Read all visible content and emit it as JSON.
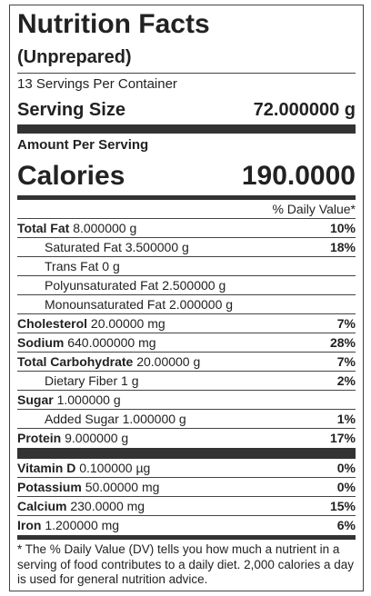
{
  "title": "Nutrition Facts",
  "subtitle": "(Unprepared)",
  "servings": "13 Servings Per Container",
  "serving_size": {
    "label": "Serving Size",
    "value": "72.000000 g"
  },
  "amount_per_serving": "Amount Per Serving",
  "calories": {
    "label": "Calories",
    "value": "190.0000"
  },
  "daily_value_header": "% Daily Value*",
  "nutrients": [
    {
      "name": "Total Fat",
      "amount": "8.000000 g",
      "dv": "10%",
      "sub": [
        {
          "name": "Saturated Fat",
          "amount": "3.500000 g",
          "dv": "18%"
        },
        {
          "name": "Trans Fat",
          "amount": "0 g"
        },
        {
          "name": "Polyunsaturated Fat",
          "amount": "2.500000 g"
        },
        {
          "name": "Monounsaturated Fat",
          "amount": "2.000000 g"
        }
      ]
    },
    {
      "name": "Cholesterol",
      "amount": "20.00000 mg",
      "dv": "7%"
    },
    {
      "name": "Sodium",
      "amount": "640.000000 mg",
      "dv": "28%"
    },
    {
      "name": "Total Carbohydrate",
      "amount": "20.00000 g",
      "dv": "7%",
      "sub": [
        {
          "name": "Dietary Fiber",
          "amount": "1 g",
          "dv": "2%"
        }
      ]
    },
    {
      "name": "Sugar",
      "amount": "1.000000 g",
      "sub": [
        {
          "name": "Added Sugar",
          "amount": "1.000000 g",
          "dv": "1%"
        }
      ]
    },
    {
      "name": "Protein",
      "amount": "9.000000 g",
      "dv": "17%"
    }
  ],
  "vitamins": [
    {
      "name": "Vitamin D",
      "amount": "0.100000 µg",
      "dv": "0%"
    },
    {
      "name": "Potassium",
      "amount": "50.00000 mg",
      "dv": "0%"
    },
    {
      "name": "Calcium",
      "amount": "230.0000 mg",
      "dv": "15%"
    },
    {
      "name": "Iron",
      "amount": "1.200000 mg",
      "dv": "6%"
    }
  ],
  "footnote": "* The % Daily Value (DV) tells you how much a nutrient in a serving of food contributes to a daily diet. 2,000 calories a day is used for general nutrition advice."
}
